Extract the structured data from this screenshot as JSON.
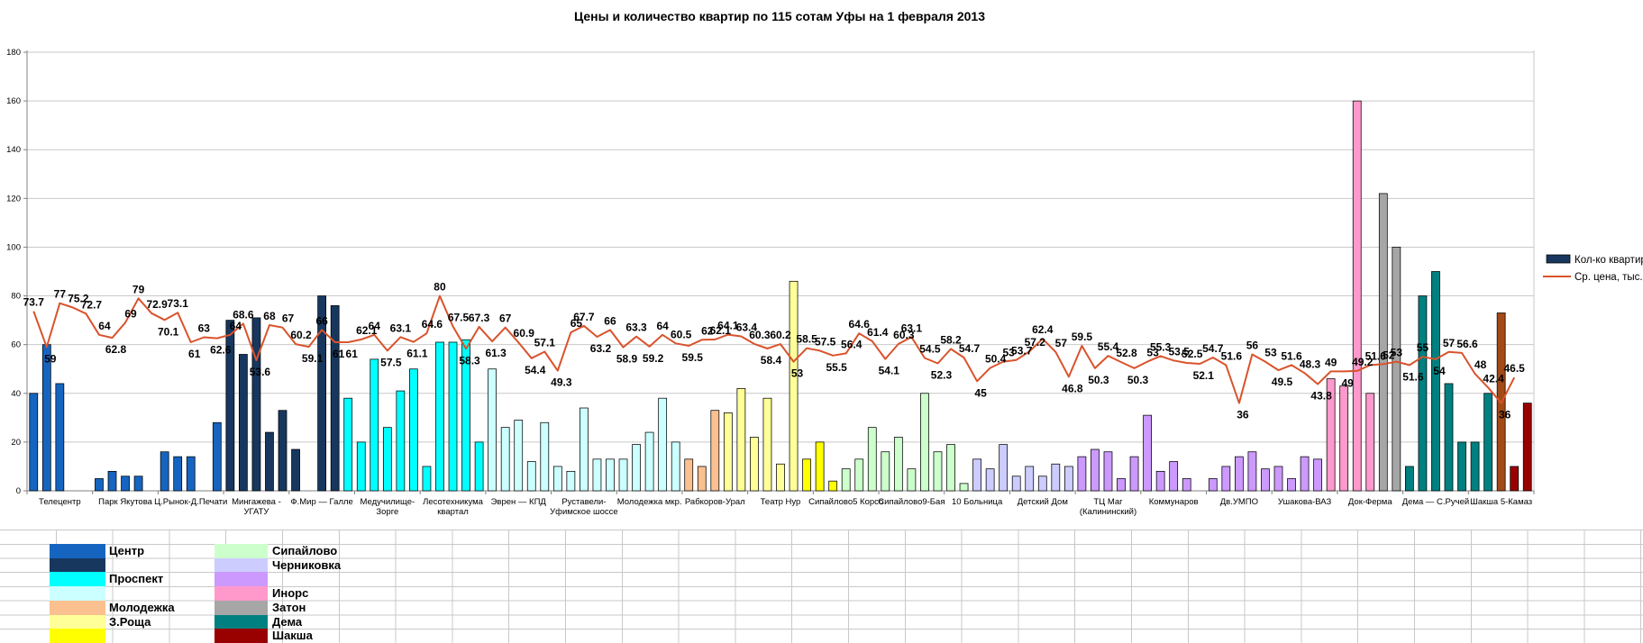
{
  "title": "Цены и количество квартир по 115 сотам Уфы на 1 февраля 2013",
  "legend": {
    "bars_label": "Кол-ко квартир",
    "line_label": "Ср. цена, тыс.р.",
    "bars_swatch_color": "#17375E",
    "line_swatch_color": "#D9532C"
  },
  "palette": {
    "centerLight": "#1565C0",
    "centerDark": "#17375E",
    "prospekt": "#00FFFF",
    "prospektLight": "#CCFFFF",
    "molodezhka": "#FAC090",
    "zroshchaLight": "#FFFF99",
    "zroshcha": "#FFFF00",
    "sipaylovo": "#CCFFCC",
    "chernikovkaLight": "#CCCCFF",
    "chernikovka": "#CC99FF",
    "inors": "#FF99CC",
    "zaton": "#A6A6A6",
    "dema": "#008080",
    "shakshaBrown": "#A34A17",
    "shaksha": "#990000"
  },
  "chart_data": {
    "type": "bar",
    "overlay": "line",
    "title": "Цены и количество квартир по 115 сотам Уфы на 1 февраля 2013",
    "ylim": [
      0,
      180
    ],
    "ytick_step": 20,
    "grid": true,
    "legend_position": "right",
    "categories": [
      "Телецентр",
      "Парк Якутова",
      "Ц.Рынок-Д.Печати",
      "Мингажева -\nУГАТУ",
      "Ф.Мир — Галле",
      "Медучилище-\nЗорге",
      "Лесотехникума\nквартал",
      "Эврен — КПД",
      "Руставели-\nУфимское шоссе",
      "Молодежка мкр.",
      "Рабкоров-Урал",
      "Театр Нур",
      "Сипайлово5 Корсо",
      "Сипайлово9-Бая",
      "10 Больница",
      "Детский Дом",
      "ТЦ Маг\n(Калининский)",
      "Коммунаров",
      "Дв.УМПО",
      "Ушакова-ВАЗ",
      "Док-Ферма",
      "Дема — С.Ручей",
      "Шакша 5-Камаз"
    ],
    "points_per_category": 5,
    "series": [
      {
        "name": "Кол-ко квартир",
        "type": "bar",
        "values": [
          40,
          60,
          44,
          0,
          0,
          5,
          8,
          6,
          6,
          0,
          16,
          14,
          14,
          0,
          28,
          70,
          56,
          71,
          24,
          33,
          17,
          0,
          80,
          76,
          38,
          20,
          54,
          26,
          41,
          50,
          10,
          61,
          61,
          62,
          20,
          50,
          26,
          29,
          12,
          28,
          10,
          8,
          34,
          13,
          13,
          13,
          19,
          24,
          38,
          20,
          13,
          10,
          33,
          32,
          42,
          22,
          38,
          11,
          86,
          13,
          20,
          4,
          9,
          13,
          26,
          16,
          22,
          9,
          40,
          16,
          19,
          3,
          13,
          9,
          19,
          6,
          10,
          6,
          11,
          10,
          14,
          17,
          16,
          5,
          14,
          31,
          8,
          12,
          5,
          0,
          5,
          10,
          14,
          16,
          9,
          10,
          5,
          14,
          13,
          46,
          43,
          160,
          40,
          122,
          100,
          10,
          80,
          90,
          44,
          20,
          20,
          40,
          73,
          10,
          36
        ],
        "point_color_runs": [
          [
            "centerLight",
            15
          ],
          [
            "centerDark",
            9
          ],
          [
            "prospekt",
            11
          ],
          [
            "prospektLight",
            15
          ],
          [
            "molodezhka",
            3
          ],
          [
            "zroshchaLight",
            6
          ],
          [
            "zroshcha",
            3
          ],
          [
            "sipaylovo",
            10
          ],
          [
            "chernikovkaLight",
            8
          ],
          [
            "chernikovka",
            19
          ],
          [
            "inors",
            4
          ],
          [
            "zaton",
            2
          ],
          [
            "dema",
            7
          ],
          [
            "shakshaBrown",
            1
          ],
          [
            "shaksha",
            2
          ]
        ]
      },
      {
        "name": "Ср. цена, тыс.р.",
        "type": "line",
        "color": "#D9532C",
        "values": [
          73.7,
          59,
          77,
          75.2,
          72.7,
          64,
          62.8,
          69,
          79,
          72.9,
          70.1,
          73.1,
          61,
          63,
          62.6,
          64,
          68.6,
          53.6,
          68,
          67,
          60.2,
          59.1,
          66,
          61,
          61,
          62.1,
          64,
          57.5,
          63.1,
          61.1,
          64.6,
          80,
          67.5,
          58.3,
          67.3,
          61.3,
          67,
          60.9,
          54.4,
          57.1,
          49.3,
          65,
          67.7,
          63.2,
          66,
          58.9,
          63.3,
          59.2,
          64,
          60.5,
          59.5,
          62,
          62.1,
          64.1,
          63.4,
          60.3,
          58.4,
          60.2,
          53,
          58.5,
          57.5,
          55.5,
          56.4,
          64.6,
          61.4,
          54.1,
          60.3,
          63.1,
          54.5,
          52.3,
          58.2,
          54.7,
          45,
          50.4,
          53,
          53.7,
          57.2,
          62.4,
          57,
          46.8,
          59.5,
          50.3,
          55.4,
          52.8,
          50.3,
          53,
          55.3,
          53.5,
          52.5,
          52.1,
          54.7,
          51.6,
          36,
          56,
          53,
          49.5,
          51.6,
          48.3,
          43.8,
          49,
          49,
          49.2,
          51.6,
          52,
          53,
          51.6,
          55,
          54,
          57,
          56.6,
          48,
          42.4,
          36,
          46.5,
          null
        ],
        "show_point_labels": true
      }
    ]
  },
  "district_table": {
    "left": [
      {
        "color": "#1565C0",
        "label": "Центр"
      },
      {
        "color": "#17375E",
        "label": ""
      },
      {
        "color": "#00FFFF",
        "label": "Проспект"
      },
      {
        "color": "#CCFFFF",
        "label": ""
      },
      {
        "color": "#FAC090",
        "label": "Молодежка"
      },
      {
        "color": "#FFFF99",
        "label": "З.Роща"
      },
      {
        "color": "#FFFF00",
        "label": ""
      }
    ],
    "right": [
      {
        "color": "#CCFFCC",
        "label": "Сипайлово"
      },
      {
        "color": "#CCCCFF",
        "label": "Черниковка"
      },
      {
        "color": "#CC99FF",
        "label": ""
      },
      {
        "color": "#FF99CC",
        "label": "Инорс"
      },
      {
        "color": "#A6A6A6",
        "label": "Затон"
      },
      {
        "color": "#008080",
        "label": "Дема"
      },
      {
        "color": "#990000",
        "label": "Шакша"
      }
    ]
  }
}
